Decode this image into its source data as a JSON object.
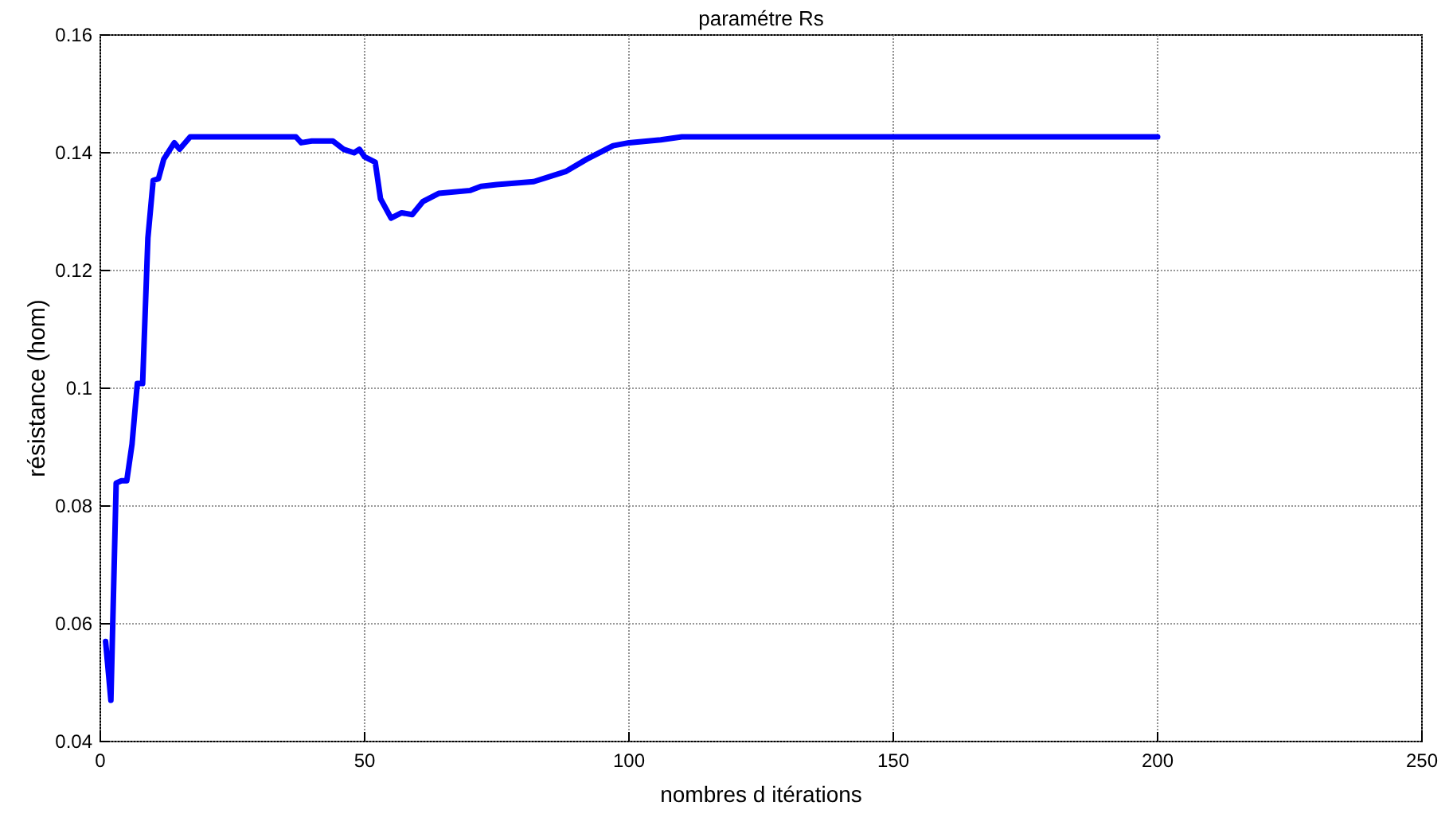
{
  "chart_data": {
    "type": "line",
    "title": "paramétre Rs",
    "xlabel": "nombres d itérations",
    "ylabel": "résistance (hom)",
    "series": [
      {
        "color": "#0000ff",
        "x": [
          1,
          2,
          3,
          4,
          5,
          6,
          7,
          8,
          9,
          10,
          11,
          12,
          14,
          15,
          17,
          29,
          37,
          38,
          40,
          44,
          46,
          48,
          49,
          50,
          52,
          53,
          55,
          57,
          59,
          61,
          64,
          70,
          72,
          75,
          82,
          88,
          92,
          97,
          100,
          106,
          110,
          200
        ],
        "values": [
          0.057,
          0.047,
          0.0839,
          0.0843,
          0.0843,
          0.0905,
          0.1008,
          0.1008,
          0.1255,
          0.1353,
          0.1356,
          0.1389,
          0.1417,
          0.1406,
          0.1427,
          0.1427,
          0.1427,
          0.1417,
          0.142,
          0.142,
          0.1406,
          0.14,
          0.1406,
          0.1393,
          0.1384,
          0.1322,
          0.1289,
          0.1298,
          0.1295,
          0.1317,
          0.1331,
          0.1336,
          0.1343,
          0.1346,
          0.1351,
          0.1368,
          0.1389,
          0.1412,
          0.1417,
          0.1422,
          0.1427,
          0.1427
        ]
      }
    ],
    "xlim": [
      0,
      250
    ],
    "xticks": [
      0,
      50,
      100,
      150,
      200,
      250
    ],
    "ylim": [
      0.04,
      0.16
    ],
    "yticks": [
      0.04,
      0.06,
      0.08,
      0.1,
      0.12,
      0.14,
      0.16
    ],
    "grid": true,
    "marker": "none",
    "line_style": "solid"
  }
}
